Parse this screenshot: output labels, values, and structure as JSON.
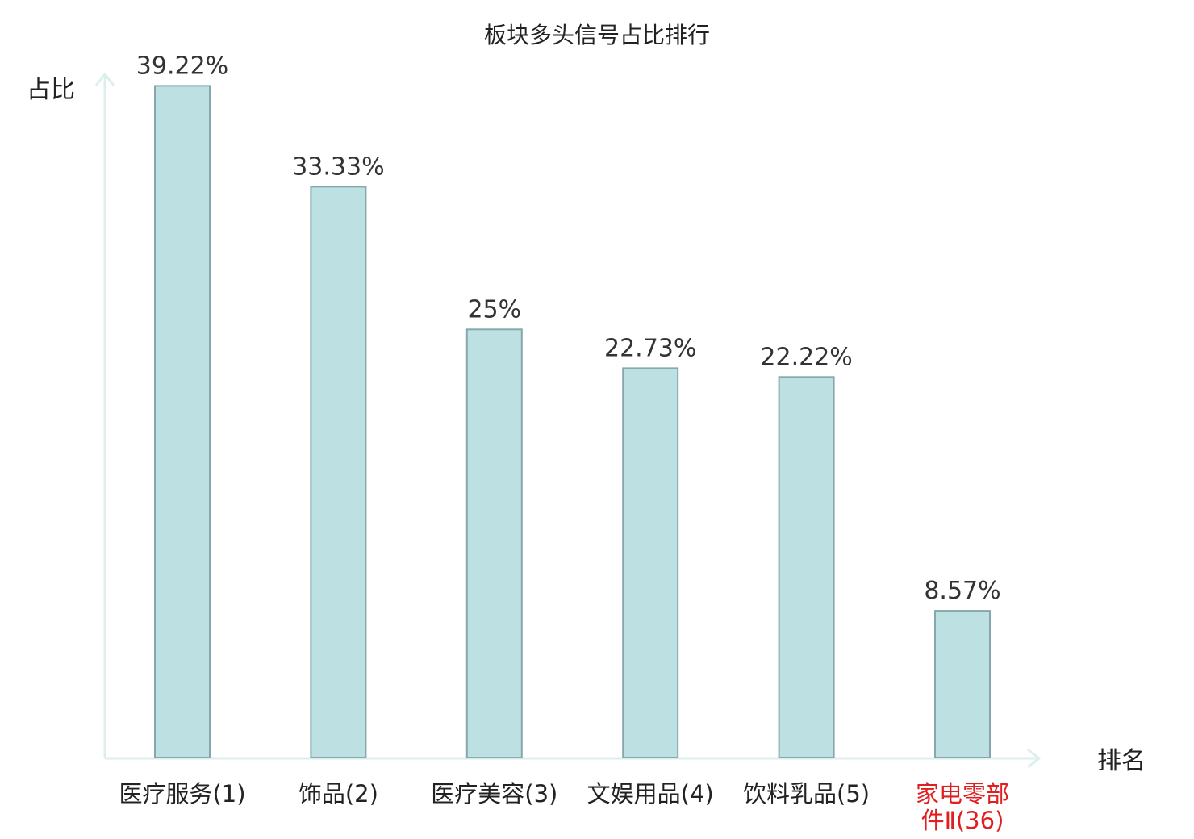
{
  "chart_data": {
    "type": "bar",
    "title": "板块多头信号占比排行",
    "ylabel": "占比",
    "xlabel": "排名",
    "categories": [
      [
        "医疗服务(1)"
      ],
      [
        "饰品(2)"
      ],
      [
        "医疗美容(3)"
      ],
      [
        "文娱用品(4)"
      ],
      [
        "饮料乳品(5)"
      ],
      [
        "家电零部",
        "件Ⅱ(36)"
      ]
    ],
    "values": [
      39.22,
      33.33,
      25,
      22.73,
      22.22,
      8.57
    ],
    "value_labels": [
      "39.22%",
      "33.33%",
      "25%",
      "22.73%",
      "22.22%",
      "8.57%"
    ],
    "highlight_index": 5,
    "ylim": [
      0,
      40
    ],
    "colors": {
      "bar_fill": "#bde0e2",
      "bar_stroke": "#86a8ac",
      "axis": "#dcefec",
      "highlight_label": "#e02020",
      "text": "#222222"
    }
  }
}
